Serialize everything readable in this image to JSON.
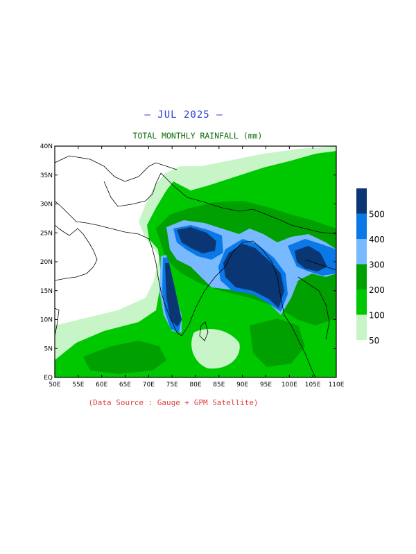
{
  "title": "— JUL 2025 —",
  "subtitle": "TOTAL MONTHLY RAINFALL (mm)",
  "source": "(Data Source : Gauge + GPM Satellite)",
  "map": {
    "lon_range": [
      50,
      110
    ],
    "lat_range": [
      0,
      40
    ],
    "lon_ticks": [
      "50E",
      "55E",
      "60E",
      "65E",
      "70E",
      "75E",
      "80E",
      "85E",
      "90E",
      "95E",
      "100E",
      "105E",
      "110E"
    ],
    "lat_ticks": [
      "EQ",
      "5N",
      "10N",
      "15N",
      "20N",
      "25N",
      "30N",
      "35N",
      "40N"
    ]
  },
  "legend": {
    "labels": [
      "50",
      "100",
      "200",
      "300",
      "400",
      "500"
    ],
    "colors": [
      "#c8f5c8",
      "#00c800",
      "#00a000",
      "#78b9ff",
      "#0a78e6",
      "#0a3774"
    ]
  }
}
